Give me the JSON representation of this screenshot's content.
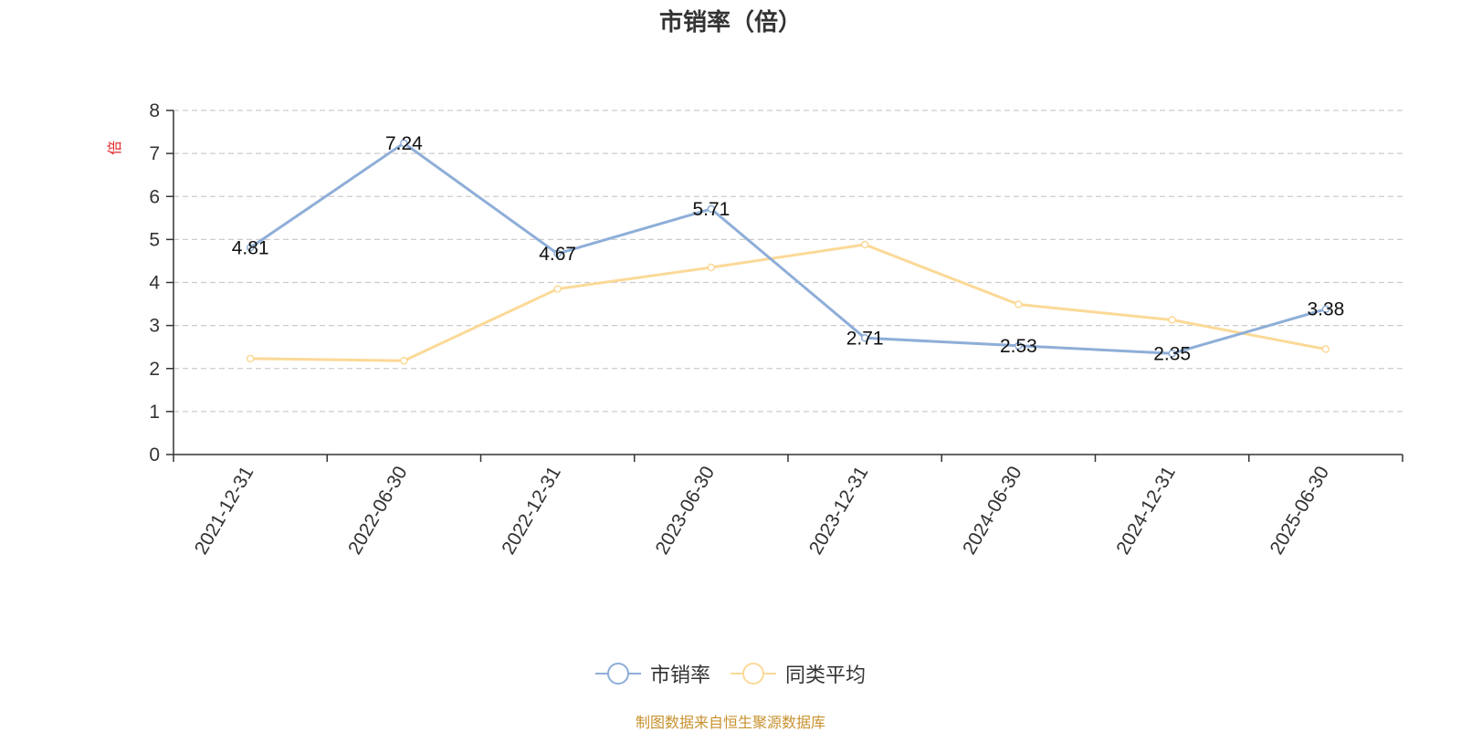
{
  "chart_data": {
    "type": "line",
    "title": "市销率（倍）",
    "ylabel": "倍",
    "xlabel": "",
    "categories": [
      "2021-12-31",
      "2022-06-30",
      "2022-12-31",
      "2023-06-30",
      "2023-12-31",
      "2024-06-30",
      "2024-12-31",
      "2025-06-30"
    ],
    "ylim": [
      0,
      8
    ],
    "yticks": [
      0,
      1,
      2,
      3,
      4,
      5,
      6,
      7,
      8
    ],
    "grid": true,
    "legend_position": "bottom",
    "series": [
      {
        "name": "市销率",
        "color": "#8eaed8",
        "values": [
          4.81,
          7.24,
          4.67,
          5.71,
          2.71,
          2.53,
          2.35,
          3.38
        ],
        "labels": [
          "4.81",
          "7.24",
          "4.67",
          "5.71",
          "2.71",
          "2.53",
          "2.35",
          "3.38"
        ]
      },
      {
        "name": "同类平均",
        "color": "#fbd997",
        "values": [
          2.23,
          2.18,
          3.85,
          4.35,
          4.88,
          3.49,
          3.13,
          2.45
        ]
      }
    ]
  },
  "source_note": "制图数据来自恒生聚源数据库",
  "colors": {
    "axis": "#333333",
    "grid": "#cccccc",
    "ylabel": "#e0282a",
    "source": "#c8922f"
  }
}
